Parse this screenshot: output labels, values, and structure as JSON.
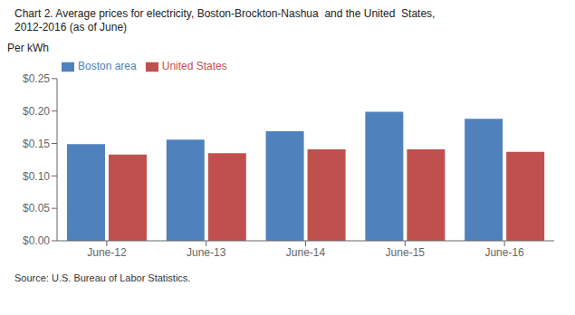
{
  "chart_data": {
    "type": "bar",
    "title": "Chart 2. Average prices for electricity, Boston-Brockton-Nashua  and the United  States,",
    "subtitle": "2012-2016 (as of June)",
    "ylabel": "Per kWh",
    "annotations": [
      "Source: U.S. Bureau of Labor Statistics."
    ],
    "categories": [
      "June-12",
      "June-13",
      "June-14",
      "June-15",
      "June-16"
    ],
    "series": [
      {
        "name": "Boston area",
        "color": "#4F81BD",
        "values": [
          0.149,
          0.156,
          0.169,
          0.199,
          0.188
        ]
      },
      {
        "name": "United States",
        "color": "#C0504D",
        "values": [
          0.133,
          0.135,
          0.141,
          0.141,
          0.137
        ]
      }
    ],
    "ylim": [
      0,
      0.25
    ],
    "yticks": [
      {
        "value": 0.0,
        "label": "$0.00"
      },
      {
        "value": 0.05,
        "label": "$0.05"
      },
      {
        "value": 0.1,
        "label": "$0.10"
      },
      {
        "value": 0.15,
        "label": "$0.15"
      },
      {
        "value": 0.2,
        "label": "$0.20"
      },
      {
        "value": 0.25,
        "label": "$0.25"
      }
    ],
    "grid": false,
    "legend": "upper left"
  }
}
